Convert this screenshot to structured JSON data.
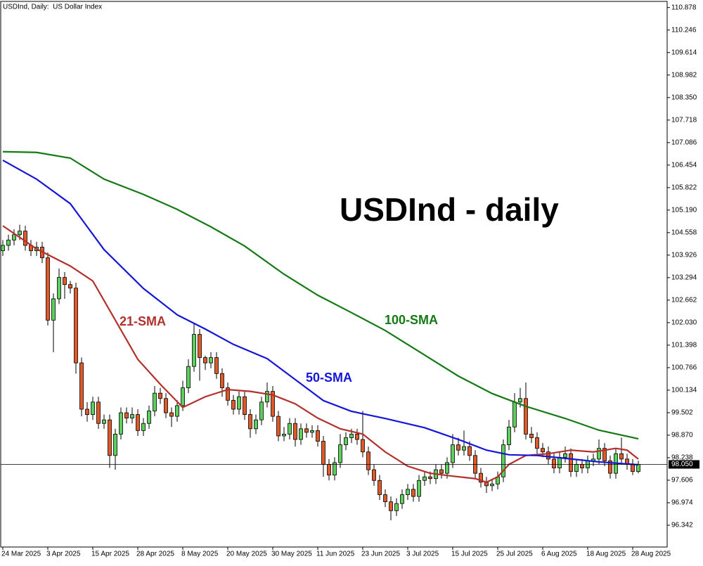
{
  "chart_data": {
    "type": "candlestick",
    "title": "USDInd, Daily:  US Dollar Index",
    "annotation": "USDInd - daily",
    "categories": [
      "24 Mar 2025",
      null,
      null,
      null,
      null,
      null,
      null,
      null,
      "3 Apr 2025",
      null,
      null,
      null,
      null,
      null,
      null,
      null,
      "15 Apr 2025",
      null,
      null,
      null,
      null,
      null,
      null,
      null,
      "28 Apr 2025",
      null,
      null,
      null,
      null,
      null,
      null,
      null,
      "8 May 2025",
      null,
      null,
      null,
      null,
      null,
      null,
      null,
      "20 May 2025",
      null,
      null,
      null,
      null,
      null,
      null,
      null,
      "30 May 2025",
      null,
      null,
      null,
      null,
      null,
      null,
      null,
      "11 Jun 2025",
      null,
      null,
      null,
      null,
      null,
      null,
      null,
      "23 Jun 2025",
      null,
      null,
      null,
      null,
      null,
      null,
      null,
      "3 Jul 2025",
      null,
      null,
      null,
      null,
      null,
      null,
      null,
      "15 Jul 2025",
      null,
      null,
      null,
      null,
      null,
      null,
      null,
      "25 Jul 2025",
      null,
      null,
      null,
      null,
      null,
      null,
      null,
      "6 Aug 2025",
      null,
      null,
      null,
      null,
      null,
      null,
      null,
      "18 Aug 2025",
      null,
      null,
      null,
      null,
      null,
      null,
      null,
      "28 Aug 2025",
      null
    ],
    "open": [
      104.05,
      104.2,
      104.35,
      104.5,
      104.6,
      104.2,
      104.05,
      104.15,
      103.85,
      102.1,
      102.7,
      103.3,
      103.1,
      103.0,
      100.9,
      99.6,
      99.45,
      99.8,
      99.2,
      99.3,
      98.3,
      98.9,
      99.5,
      99.35,
      99.45,
      99.0,
      99.2,
      99.55,
      100.05,
      99.9,
      99.5,
      99.4,
      99.7,
      100.2,
      100.8,
      101.7,
      101.05,
      100.9,
      101.05,
      100.6,
      100.2,
      99.85,
      99.6,
      99.95,
      99.45,
      99.05,
      99.3,
      99.8,
      100.1,
      99.4,
      98.85,
      98.9,
      99.2,
      98.75,
      99.05,
      98.95,
      99.0,
      98.7,
      98.05,
      97.75,
      98.1,
      98.6,
      98.8,
      98.9,
      98.75,
      98.4,
      97.9,
      97.6,
      97.2,
      97.0,
      96.75,
      96.95,
      97.2,
      97.35,
      97.15,
      97.6,
      97.7,
      97.65,
      97.9,
      97.8,
      98.1,
      98.6,
      98.45,
      98.55,
      98.3,
      97.8,
      97.55,
      97.45,
      97.5,
      97.7,
      98.6,
      99.1,
      99.8,
      99.9,
      98.9,
      98.8,
      98.5,
      98.4,
      98.2,
      97.95,
      98.25,
      98.35,
      97.85,
      98.05,
      97.95,
      98.15,
      98.2,
      98.5,
      98.15,
      97.8,
      98.35,
      98.2,
      98.05,
      97.85
    ],
    "high": [
      104.35,
      104.5,
      104.65,
      104.78,
      104.75,
      104.35,
      104.3,
      104.3,
      104.0,
      102.85,
      103.55,
      103.45,
      103.2,
      103.15,
      101.05,
      99.8,
      99.95,
      99.95,
      99.45,
      99.45,
      99.05,
      99.65,
      99.65,
      99.65,
      99.6,
      99.35,
      99.7,
      100.25,
      100.2,
      100.05,
      99.65,
      99.85,
      100.4,
      101.0,
      102.0,
      101.85,
      101.1,
      101.2,
      101.2,
      100.75,
      100.35,
      100.0,
      100.1,
      100.1,
      99.6,
      99.45,
      99.95,
      100.35,
      100.25,
      99.55,
      99.1,
      99.35,
      99.35,
      99.2,
      99.2,
      99.15,
      99.15,
      98.85,
      98.2,
      98.25,
      98.9,
      98.95,
      99.05,
      99.05,
      99.55,
      98.55,
      98.05,
      97.75,
      97.35,
      97.15,
      97.1,
      97.35,
      97.5,
      97.5,
      97.75,
      97.85,
      97.85,
      98.05,
      98.05,
      98.25,
      98.9,
      98.8,
      99.0,
      98.7,
      98.45,
      97.95,
      97.7,
      97.65,
      97.85,
      98.75,
      99.3,
      100.05,
      100.2,
      100.35,
      99.1,
      98.95,
      98.65,
      98.55,
      98.35,
      98.4,
      98.55,
      98.5,
      98.2,
      98.2,
      98.3,
      98.35,
      98.75,
      98.65,
      98.3,
      98.5,
      98.8,
      98.35,
      98.2,
      98.15
    ],
    "low": [
      103.9,
      104.05,
      104.2,
      104.35,
      104.05,
      103.9,
      103.9,
      103.7,
      101.95,
      101.2,
      102.55,
      102.7,
      102.85,
      100.6,
      99.4,
      99.25,
      99.3,
      99.05,
      99.05,
      97.95,
      97.9,
      98.75,
      99.2,
      99.2,
      98.85,
      98.85,
      99.05,
      99.4,
      99.75,
      99.35,
      99.1,
      99.25,
      99.55,
      100.05,
      100.65,
      100.4,
      100.7,
      100.75,
      100.45,
      99.95,
      99.7,
      99.45,
      99.45,
      99.3,
      98.8,
      98.9,
      99.15,
      99.65,
      99.25,
      98.7,
      98.7,
      98.75,
      98.55,
      98.6,
      98.8,
      98.8,
      98.55,
      97.7,
      97.6,
      97.6,
      97.95,
      98.45,
      98.65,
      98.6,
      98.25,
      97.75,
      97.45,
      97.05,
      96.85,
      96.48,
      96.6,
      96.8,
      97.05,
      97.0,
      97.0,
      97.45,
      97.5,
      97.5,
      97.65,
      97.65,
      97.95,
      98.3,
      98.3,
      98.15,
      97.65,
      97.4,
      97.25,
      97.3,
      97.35,
      97.55,
      98.45,
      98.95,
      99.65,
      98.75,
      98.65,
      98.35,
      98.25,
      98.05,
      97.8,
      97.8,
      98.1,
      97.7,
      97.7,
      97.8,
      97.8,
      98.0,
      98.05,
      98.0,
      97.65,
      97.65,
      98.05,
      97.9,
      97.75,
      97.8
    ],
    "close": [
      104.2,
      104.35,
      104.5,
      104.6,
      104.2,
      104.05,
      104.15,
      103.85,
      102.1,
      102.7,
      103.3,
      103.1,
      103.0,
      100.9,
      99.6,
      99.45,
      99.8,
      99.2,
      99.3,
      98.3,
      98.9,
      99.5,
      99.35,
      99.45,
      99.0,
      99.2,
      99.55,
      100.05,
      99.9,
      99.5,
      99.4,
      99.7,
      100.2,
      100.8,
      101.7,
      101.05,
      100.9,
      101.05,
      100.6,
      100.2,
      99.85,
      99.6,
      99.95,
      99.45,
      99.05,
      99.3,
      99.8,
      100.1,
      99.4,
      98.85,
      98.9,
      99.2,
      98.75,
      99.05,
      98.95,
      99.0,
      98.7,
      98.05,
      97.75,
      98.1,
      98.6,
      98.8,
      98.9,
      98.75,
      98.4,
      97.9,
      97.6,
      97.2,
      97.0,
      96.75,
      96.95,
      97.2,
      97.35,
      97.15,
      97.6,
      97.7,
      97.65,
      97.9,
      97.8,
      98.1,
      98.6,
      98.45,
      98.55,
      98.3,
      97.8,
      97.55,
      97.45,
      97.5,
      97.7,
      98.6,
      99.1,
      99.8,
      99.9,
      98.9,
      98.8,
      98.5,
      98.4,
      98.2,
      97.95,
      98.25,
      98.35,
      97.85,
      98.05,
      97.95,
      98.15,
      98.2,
      98.5,
      98.15,
      97.8,
      98.35,
      98.2,
      98.05,
      97.85,
      98.05
    ],
    "up_color": "#5ccf5c",
    "down_color": "#e0592a",
    "series": [
      {
        "name": "21-SMA",
        "color": "#b3302c",
        "x": [
          0,
          6,
          12,
          16,
          20,
          24,
          28,
          32,
          36,
          40,
          44,
          48,
          52,
          56,
          60,
          64,
          68,
          72,
          76,
          80,
          84,
          86,
          88,
          90,
          93,
          97,
          101,
          105,
          109,
          111,
          113
        ],
        "values": [
          104.75,
          104.1,
          103.62,
          103.2,
          102.1,
          101.0,
          100.3,
          99.65,
          99.95,
          100.15,
          100.1,
          100.0,
          99.75,
          99.35,
          99.05,
          98.9,
          98.4,
          98.0,
          97.8,
          97.72,
          97.65,
          97.55,
          97.7,
          98.05,
          98.3,
          98.35,
          98.45,
          98.4,
          98.5,
          98.45,
          98.2
        ]
      },
      {
        "name": "50-SMA",
        "color": "#1515d8",
        "x": [
          0,
          6,
          12,
          18,
          25,
          31,
          36,
          41,
          47,
          52,
          57,
          62,
          68,
          75,
          81,
          86,
          90,
          95,
          100,
          106,
          113
        ],
        "values": [
          106.59,
          106.06,
          105.37,
          104.08,
          102.99,
          102.25,
          101.85,
          101.42,
          101.02,
          100.43,
          99.84,
          99.54,
          99.34,
          99.08,
          98.75,
          98.45,
          98.32,
          98.3,
          98.22,
          98.12,
          98.04
        ]
      },
      {
        "name": "100-SMA",
        "color": "#157a15",
        "x": [
          0,
          6,
          12,
          18,
          25,
          31,
          37,
          43,
          50,
          56,
          62,
          68,
          75,
          81,
          87,
          93,
          100,
          106,
          113
        ],
        "values": [
          106.83,
          106.81,
          106.65,
          106.06,
          105.63,
          105.21,
          104.72,
          104.18,
          103.39,
          102.8,
          102.31,
          101.81,
          101.12,
          100.53,
          100.04,
          99.68,
          99.34,
          99.01,
          98.77
        ]
      }
    ],
    "last_price": {
      "value": 98.05,
      "label": "98.050"
    },
    "ylim": [
      95.73,
      111.03
    ],
    "yticks": [
      96.342,
      96.974,
      97.606,
      98.238,
      {
        "value": 98.87,
        "label": "98.870"
      },
      99.502,
      100.134,
      100.766,
      101.398,
      {
        "value": 102.03,
        "label": "102.030"
      },
      102.662,
      103.294,
      103.926,
      104.558,
      {
        "value": 105.19,
        "label": "105.190"
      },
      105.822,
      106.454,
      107.086,
      107.718,
      {
        "value": 108.35,
        "label": "108.350"
      },
      108.982,
      109.614,
      110.246,
      110.878
    ]
  }
}
